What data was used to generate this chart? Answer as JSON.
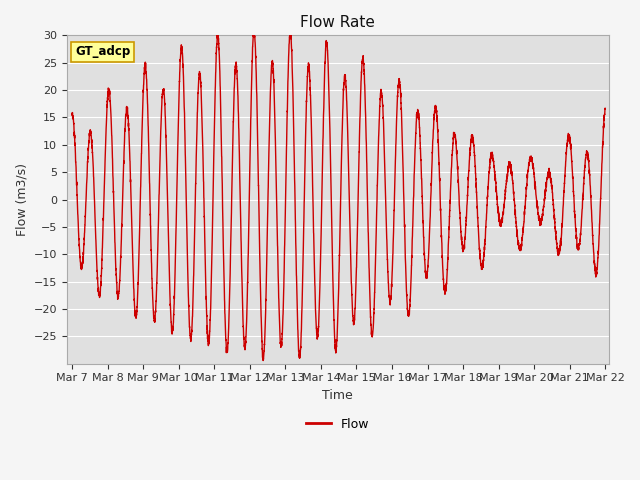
{
  "title": "Flow Rate",
  "xlabel": "Time",
  "ylabel": "Flow (m3/s)",
  "ylim": [
    -30,
    30
  ],
  "yticks": [
    -25,
    -20,
    -15,
    -10,
    -5,
    0,
    5,
    10,
    15,
    20,
    25,
    30
  ],
  "x_tick_labels": [
    "Mar 7",
    "Mar 8",
    "Mar 9",
    "Mar 10",
    "Mar 11",
    "Mar 12",
    "Mar 13",
    "Mar 14",
    "Mar 15",
    "Mar 16",
    "Mar 17",
    "Mar 18",
    "Mar 19",
    "Mar 20",
    "Mar 21",
    "Mar 22"
  ],
  "line_color": "#cc0000",
  "line_width": 1.0,
  "annotation_text": "GT_adcp",
  "annotation_bg": "#ffff99",
  "annotation_border": "#cc9900",
  "legend_label": "Flow",
  "plot_bg": "#e0e0e0",
  "grid_color": "#ffffff",
  "fig_bg": "#f5f5f5",
  "title_fontsize": 11,
  "axis_label_fontsize": 9,
  "tick_fontsize": 8,
  "n_points": 5000,
  "start_day": 7,
  "end_day": 22
}
